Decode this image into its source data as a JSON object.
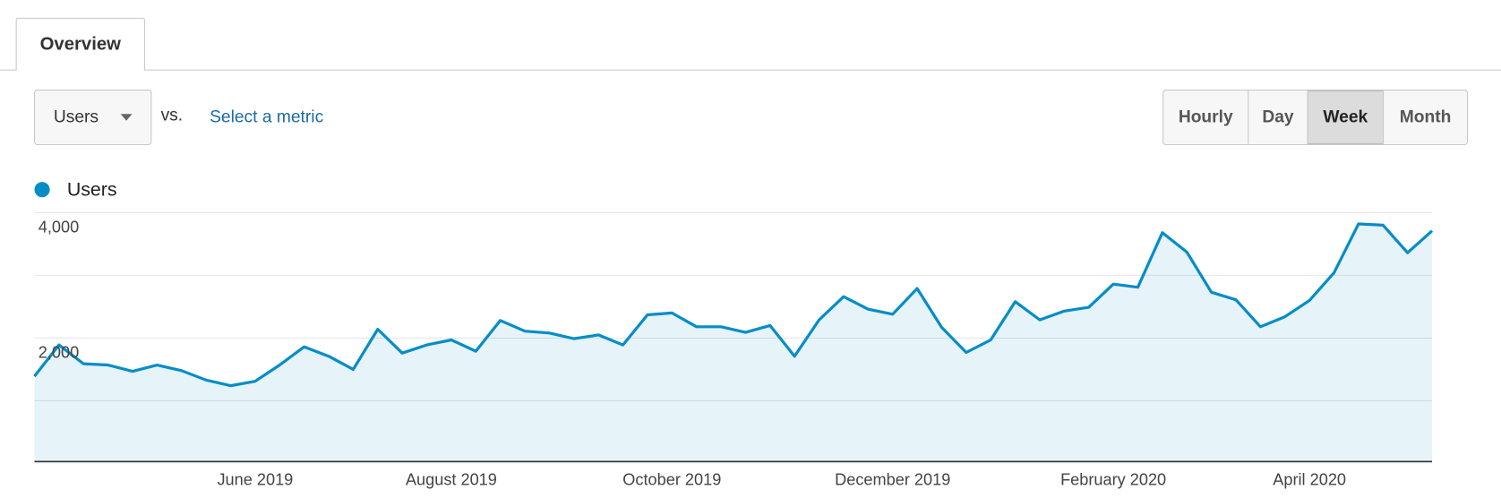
{
  "tab": "Overview",
  "metric_selector": {
    "label": "Users"
  },
  "compare": {
    "vs": "vs.",
    "link": "Select a metric"
  },
  "granularity": {
    "options": [
      "Hourly",
      "Day",
      "Week",
      "Month"
    ],
    "selected": 2
  },
  "chart_data": {
    "type": "area",
    "categories": [
      null,
      null,
      null,
      null,
      null,
      null,
      null,
      null,
      null,
      "June 2019",
      null,
      null,
      null,
      null,
      null,
      null,
      null,
      "August 2019",
      null,
      null,
      null,
      null,
      null,
      null,
      null,
      null,
      "October 2019",
      null,
      null,
      null,
      null,
      null,
      null,
      null,
      null,
      "December 2019",
      null,
      null,
      null,
      null,
      null,
      null,
      null,
      null,
      "February 2020",
      null,
      null,
      null,
      null,
      null,
      null,
      null,
      "April 2020",
      null,
      null,
      null,
      null,
      null
    ],
    "series": [
      {
        "name": "Users",
        "color": "#058dc7",
        "values": [
          1390,
          1890,
          1590,
          1570,
          1470,
          1570,
          1480,
          1330,
          1240,
          1310,
          1570,
          1860,
          1710,
          1500,
          2140,
          1760,
          1890,
          1970,
          1790,
          2280,
          2110,
          2080,
          1990,
          2050,
          1890,
          2370,
          2400,
          2180,
          2180,
          2090,
          2200,
          1710,
          2290,
          2660,
          2460,
          2380,
          2790,
          2170,
          1770,
          1970,
          2580,
          2290,
          2430,
          2490,
          2860,
          2810,
          3680,
          3370,
          2730,
          2610,
          2180,
          2340,
          2600,
          3040,
          3820,
          3800,
          3360,
          3710
        ]
      }
    ],
    "ylim": [
      0,
      4000
    ],
    "yticks": [
      {
        "value": 1000,
        "label": null
      },
      {
        "value": 2000,
        "label": "2,000"
      },
      {
        "value": 3000,
        "label": null
      },
      {
        "value": 4000,
        "label": "4,000"
      }
    ],
    "grid": true
  }
}
